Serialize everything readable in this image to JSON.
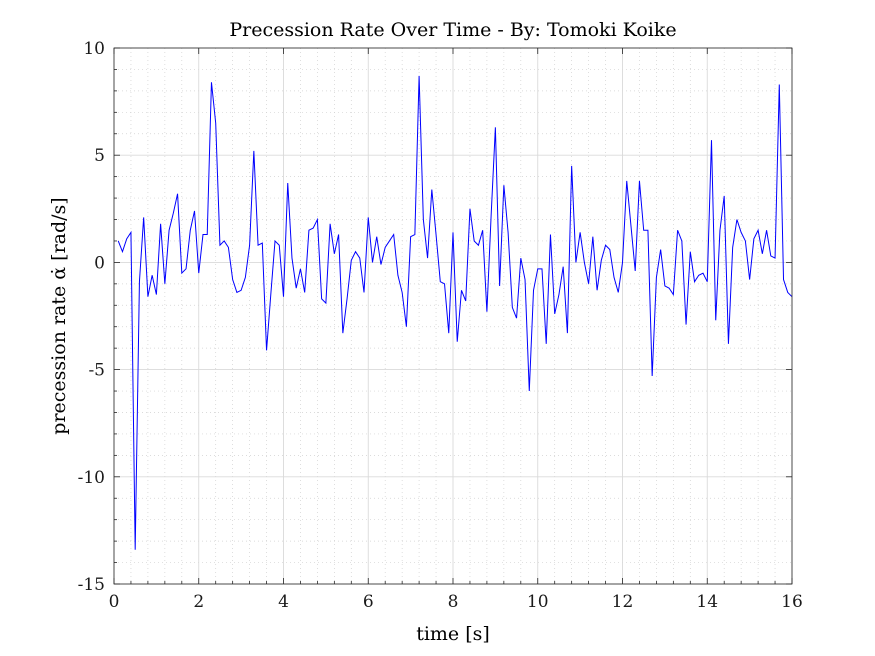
{
  "chart_data": {
    "type": "line",
    "title": "Precession Rate Over Time - By: Tomoki Koike",
    "xlabel": "time [s]",
    "ylabel": "precession rate α̇ [rad/s]",
    "xlim": [
      0,
      16
    ],
    "ylim": [
      -15,
      10
    ],
    "xticks": [
      0,
      2,
      4,
      6,
      8,
      10,
      12,
      14,
      16
    ],
    "xtick_labels": [
      "0",
      "2",
      "4",
      "6",
      "8",
      "10",
      "12",
      "14",
      "16"
    ],
    "yticks": [
      -15,
      -10,
      -5,
      0,
      5,
      10
    ],
    "ytick_labels": [
      "-15",
      "-10",
      "-5",
      "0",
      "5",
      "10"
    ],
    "grid": true,
    "minor_grid": true,
    "series": [
      {
        "color": "#0000ff",
        "x": [
          0.1,
          0.2,
          0.3,
          0.4,
          0.5,
          0.6,
          0.7,
          0.8,
          0.9,
          1.0,
          1.1,
          1.2,
          1.3,
          1.4,
          1.5,
          1.6,
          1.7,
          1.8,
          1.9,
          2.0,
          2.1,
          2.2,
          2.3,
          2.4,
          2.5,
          2.6,
          2.7,
          2.8,
          2.9,
          3.0,
          3.1,
          3.2,
          3.3,
          3.4,
          3.5,
          3.6,
          3.7,
          3.8,
          3.9,
          4.0,
          4.1,
          4.2,
          4.3,
          4.4,
          4.5,
          4.6,
          4.7,
          4.8,
          4.9,
          5.0,
          5.1,
          5.2,
          5.3,
          5.4,
          5.5,
          5.6,
          5.7,
          5.8,
          5.9,
          6.0,
          6.1,
          6.2,
          6.3,
          6.4,
          6.5,
          6.6,
          6.7,
          6.8,
          6.9,
          7.0,
          7.1,
          7.2,
          7.3,
          7.4,
          7.5,
          7.6,
          7.7,
          7.8,
          7.9,
          8.0,
          8.1,
          8.2,
          8.3,
          8.4,
          8.5,
          8.6,
          8.7,
          8.8,
          8.9,
          9.0,
          9.1,
          9.2,
          9.3,
          9.4,
          9.5,
          9.6,
          9.7,
          9.8,
          9.9,
          10.0,
          10.1,
          10.2,
          10.3,
          10.4,
          10.5,
          10.6,
          10.7,
          10.8,
          10.9,
          11.0,
          11.1,
          11.2,
          11.3,
          11.4,
          11.5,
          11.6,
          11.7,
          11.8,
          11.9,
          12.0,
          12.1,
          12.2,
          12.3,
          12.4,
          12.5,
          12.6,
          12.7,
          12.8,
          12.9,
          13.0,
          13.1,
          13.2,
          13.3,
          13.4,
          13.5,
          13.6,
          13.7,
          13.8,
          13.9,
          14.0,
          14.1,
          14.2,
          14.3,
          14.4,
          14.5,
          14.6,
          14.7,
          14.8,
          14.9,
          15.0,
          15.1,
          15.2,
          15.3,
          15.4,
          15.5,
          15.6,
          15.7,
          15.8,
          15.9,
          16.0
        ],
        "y": [
          1.0,
          0.5,
          1.1,
          1.4,
          -13.4,
          -0.9,
          2.1,
          -1.6,
          -0.6,
          -1.5,
          1.8,
          -1.0,
          1.5,
          2.3,
          3.2,
          -0.5,
          -0.3,
          1.5,
          2.4,
          -0.5,
          1.3,
          1.3,
          8.4,
          6.5,
          0.8,
          1.0,
          0.7,
          -0.8,
          -1.4,
          -1.3,
          -0.7,
          0.8,
          5.2,
          0.8,
          0.9,
          -4.1,
          -1.5,
          1.0,
          0.8,
          -1.6,
          3.7,
          0.2,
          -1.2,
          -0.3,
          -1.4,
          1.5,
          1.6,
          2.0,
          -1.7,
          -1.9,
          1.8,
          0.4,
          1.3,
          -3.3,
          -1.7,
          0.1,
          0.5,
          0.2,
          -1.4,
          2.1,
          0.0,
          1.2,
          -0.1,
          0.7,
          1.0,
          1.3,
          -0.6,
          -1.4,
          -3.0,
          1.2,
          1.3,
          8.7,
          2.0,
          0.2,
          3.4,
          1.3,
          -0.9,
          -1.0,
          -3.3,
          1.4,
          -3.7,
          -1.3,
          -1.8,
          2.5,
          1.0,
          0.8,
          1.5,
          -2.3,
          2.2,
          6.3,
          -1.1,
          3.6,
          1.4,
          -2.1,
          -2.6,
          0.2,
          -0.8,
          -6.0,
          -1.3,
          -0.3,
          -0.3,
          -3.8,
          1.3,
          -2.4,
          -1.5,
          -0.2,
          -3.3,
          4.5,
          0.0,
          1.4,
          0.0,
          -1.0,
          1.2,
          -1.3,
          0.1,
          0.8,
          0.6,
          -0.7,
          -1.4,
          0.0,
          3.8,
          1.7,
          -0.4,
          3.8,
          1.5,
          1.5,
          -5.3,
          -0.7,
          0.6,
          -1.1,
          -1.2,
          -1.5,
          1.5,
          1.0,
          -2.9,
          0.5,
          -0.9,
          -0.6,
          -0.5,
          -0.9,
          5.7,
          -2.7,
          1.5,
          3.1,
          -3.8,
          0.7,
          2.0,
          1.4,
          1.0,
          -0.8,
          1.1,
          1.5,
          0.4,
          1.5,
          0.3,
          0.2,
          8.3,
          -0.8,
          -1.4,
          -1.6
        ]
      }
    ]
  }
}
